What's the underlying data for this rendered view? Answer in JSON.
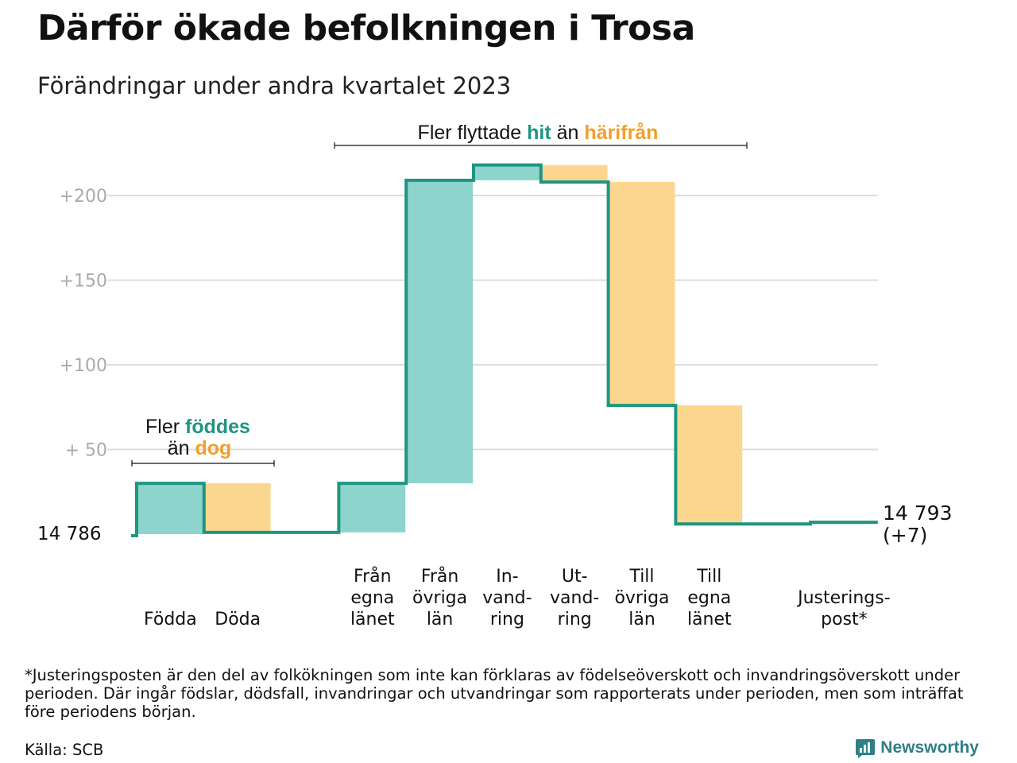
{
  "title": "Därför ökade befolkningen i Trosa",
  "subtitle": "Förändringar under andra kvartalet 2023",
  "footnote": "*Justeringsposten är den del av folkökningen som inte kan förklaras av födelseöverskott och invandringsöverskott under perioden. Där ingår födslar, dödsfall, invandringar och utvandringar som rapporterats under perioden, men som inträffat före periodens början.",
  "source": "Källa: SCB",
  "brand": "Newsworthy",
  "colors": {
    "increase": "#8dd4cc",
    "decrease": "#fbd68e",
    "line": "#1f9582",
    "grid": "#dddddd",
    "tick": "#aaaaaa",
    "accent_teal": "#1f9582",
    "accent_orange": "#f0a02a"
  },
  "chart_data": {
    "type": "waterfall",
    "base_value": 14786,
    "base_label": "14  786",
    "end_label_line1": "14 793",
    "end_label_line2": "(+7)",
    "y_ticks": [
      {
        "value": 200,
        "label": "+200"
      },
      {
        "value": 150,
        "label": "+150"
      },
      {
        "value": 100,
        "label": "+100"
      },
      {
        "value": 50,
        "label": "+  50"
      }
    ],
    "ylim": [
      0,
      220
    ],
    "steps": [
      {
        "category": [
          "Födda"
        ],
        "change": 30
      },
      {
        "category": [
          "Döda"
        ],
        "change": -29
      },
      {
        "category": [
          ""
        ],
        "change": 0
      },
      {
        "category": [
          "Från",
          "egna",
          "länet"
        ],
        "change": 29
      },
      {
        "category": [
          "Från",
          "övriga",
          "län"
        ],
        "change": 179
      },
      {
        "category": [
          "In-",
          "vand-",
          "ring"
        ],
        "change": 9
      },
      {
        "category": [
          "Ut-",
          "vand-",
          "ring"
        ],
        "change": -10
      },
      {
        "category": [
          "Till",
          "övriga",
          "län"
        ],
        "change": -132
      },
      {
        "category": [
          "Till",
          "egna",
          "länet"
        ],
        "change": -70
      },
      {
        "category": [
          ""
        ],
        "change": 0
      },
      {
        "category": [
          "Justerings-",
          "post*"
        ],
        "change": 1
      }
    ],
    "annotation_births": {
      "line1_prefix": "Fler ",
      "line1_highlight": "föddes",
      "line2_prefix": "än ",
      "line2_highlight": "dog"
    },
    "annotation_moves": {
      "prefix": "Fler flyttade ",
      "highlight1": "hit",
      "middle": " än ",
      "highlight2": "härifrån"
    }
  }
}
